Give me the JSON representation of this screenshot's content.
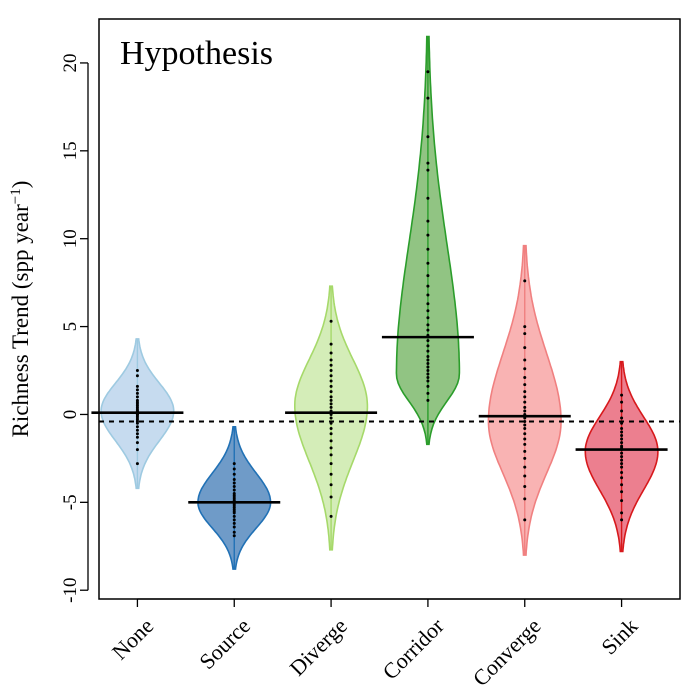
{
  "chart_data": {
    "type": "violin",
    "title": "Hypothesis",
    "ylabel": "Richness Trend (spp year",
    "ylabel_superscript": "−1",
    "ylabel_close": ")",
    "ylim": [
      -10.5,
      22.5
    ],
    "yticks": [
      -10,
      -5,
      0,
      5,
      10,
      15,
      20
    ],
    "ytick_labels": [
      "-10",
      "-5",
      "0",
      "5",
      "10",
      "15",
      "20"
    ],
    "reference_line": -0.4,
    "categories": [
      "None",
      "Source",
      "Diverge",
      "Corridor",
      "Converge",
      "Sink"
    ],
    "series": [
      {
        "category": "None",
        "fill": "#c6dbef",
        "stroke": "#9ecae1",
        "min": -4.2,
        "max": 4.3,
        "median": 0.1,
        "peak": 0.2,
        "width": 0.75,
        "points": [
          -2.0,
          -1.6,
          -1.3,
          -1.1,
          -0.9,
          -0.7,
          -0.5,
          -0.4,
          -0.3,
          -0.2,
          -0.1,
          0.0,
          0.0,
          0.1,
          0.1,
          0.2,
          0.2,
          0.3,
          0.4,
          0.5,
          0.6,
          0.7,
          0.8,
          1.0,
          1.2,
          1.4,
          1.6,
          2.2,
          2.5,
          -2.8
        ]
      },
      {
        "category": "Source",
        "fill": "#6f9bc8",
        "stroke": "#2171b5",
        "min": -8.8,
        "max": -0.7,
        "median": -5.0,
        "peak": -5.0,
        "width": 0.75,
        "points": [
          -6.7,
          -6.4,
          -6.2,
          -6.0,
          -5.8,
          -5.6,
          -5.5,
          -5.4,
          -5.3,
          -5.2,
          -5.1,
          -5.0,
          -5.0,
          -4.9,
          -4.8,
          -4.7,
          -4.6,
          -4.5,
          -4.3,
          -4.1,
          -3.9,
          -3.7,
          -3.4,
          -3.1,
          -2.8,
          -6.9
        ]
      },
      {
        "category": "Diverge",
        "fill": "#d4edb8",
        "stroke": "#a6d96a",
        "min": -7.7,
        "max": 7.3,
        "median": 0.1,
        "peak": 0.5,
        "width": 0.75,
        "points": [
          -5.8,
          -4.7,
          -4.0,
          -3.4,
          -2.8,
          -2.3,
          -1.9,
          -1.5,
          -1.1,
          -0.8,
          -0.5,
          -0.2,
          0.0,
          0.2,
          0.4,
          0.6,
          0.8,
          1.0,
          1.3,
          1.6,
          1.9,
          2.2,
          2.5,
          2.8,
          3.1,
          3.5,
          4.0,
          5.3
        ]
      },
      {
        "category": "Corridor",
        "fill": "#91c483",
        "stroke": "#2b9d2b",
        "min": -1.7,
        "max": 21.5,
        "median": 4.4,
        "peak": 2.3,
        "width": 0.65,
        "points": [
          0.8,
          1.2,
          1.6,
          1.9,
          2.1,
          2.3,
          2.5,
          2.7,
          2.9,
          3.1,
          3.3,
          3.6,
          3.9,
          4.2,
          4.5,
          4.8,
          5.1,
          5.5,
          5.9,
          6.3,
          6.8,
          7.3,
          7.9,
          8.6,
          9.4,
          10.2,
          11.0,
          12.3,
          13.9,
          14.3,
          15.8,
          18.0,
          19.5
        ]
      },
      {
        "category": "Converge",
        "fill": "#f9b3b3",
        "stroke": "#f08080",
        "min": -8.0,
        "max": 9.6,
        "median": -0.1,
        "peak": -0.4,
        "width": 0.75,
        "points": [
          -6.0,
          -4.8,
          -4.1,
          -3.5,
          -3.0,
          -2.5,
          -2.1,
          -1.7,
          -1.4,
          -1.1,
          -0.8,
          -0.6,
          -0.4,
          -0.2,
          0.0,
          0.2,
          0.4,
          0.7,
          1.0,
          1.3,
          1.7,
          2.1,
          2.6,
          3.1,
          3.8,
          4.6,
          5.0,
          7.6
        ]
      },
      {
        "category": "Sink",
        "fill": "#ec7f8f",
        "stroke": "#d7191c",
        "min": -7.8,
        "max": 3.0,
        "median": -2.0,
        "peak": -2.1,
        "width": 0.75,
        "points": [
          -5.6,
          -4.9,
          -4.4,
          -4.0,
          -3.6,
          -3.3,
          -3.0,
          -2.8,
          -2.6,
          -2.4,
          -2.2,
          -2.0,
          -1.9,
          -1.8,
          -1.6,
          -1.4,
          -1.2,
          -1.0,
          -0.8,
          -0.5,
          -0.2,
          0.2,
          0.7,
          1.1,
          -6.0
        ]
      }
    ]
  }
}
